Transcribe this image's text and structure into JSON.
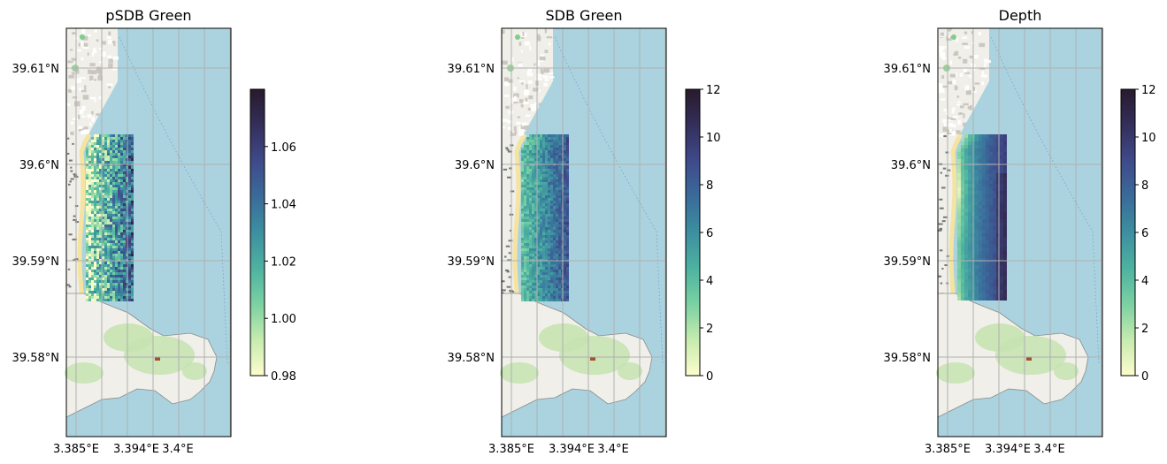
{
  "chart_data": [
    {
      "type": "heatmap",
      "title": "pSDB Green",
      "x_ticks": [
        "3.385°E",
        "3.394°E",
        "3.4°E"
      ],
      "y_ticks": [
        "39.61°N",
        "39.6°N",
        "39.59°N",
        "39.58°N"
      ],
      "grid": true,
      "colorbar": {
        "colormap": "deep",
        "range": [
          0.98,
          1.08
        ],
        "ticks": [
          "0.98",
          "1.00",
          "1.02",
          "1.04",
          "1.06"
        ],
        "position": "right"
      },
      "pattern": "noisy"
    },
    {
      "type": "heatmap",
      "title": "SDB Green",
      "x_ticks": [
        "3.385°E",
        "3.394°E",
        "3.4°E"
      ],
      "y_ticks": [
        "39.61°N",
        "39.6°N",
        "39.59°N",
        "39.58°N"
      ],
      "grid": true,
      "colorbar": {
        "colormap": "deep",
        "range": [
          0,
          12
        ],
        "ticks": [
          "0",
          "2",
          "4",
          "6",
          "8",
          "10",
          "12"
        ],
        "position": "right"
      },
      "pattern": "medium"
    },
    {
      "type": "heatmap",
      "title": "Depth",
      "x_ticks": [
        "3.385°E",
        "3.394°E",
        "3.4°E"
      ],
      "y_ticks": [
        "39.61°N",
        "39.6°N",
        "39.59°N",
        "39.58°N"
      ],
      "grid": true,
      "colorbar": {
        "colormap": "deep",
        "range": [
          0,
          12
        ],
        "ticks": [
          "0",
          "2",
          "4",
          "6",
          "8",
          "10",
          "12"
        ],
        "position": "right"
      },
      "pattern": "smooth"
    }
  ],
  "colors": {
    "sea": "#aad3df",
    "land": "#f0efe9",
    "park": "#c6e3b0",
    "urban": "#c8c3bc",
    "grid": "#b0b0b0",
    "beach": "#f4e4a0",
    "deep_colormap": [
      "#fdfdcc",
      "#c6ebaf",
      "#7bd1a2",
      "#4db2a1",
      "#3d8fa0",
      "#3a6b9a",
      "#3f4a8a",
      "#342f5b",
      "#281a2c"
    ]
  }
}
